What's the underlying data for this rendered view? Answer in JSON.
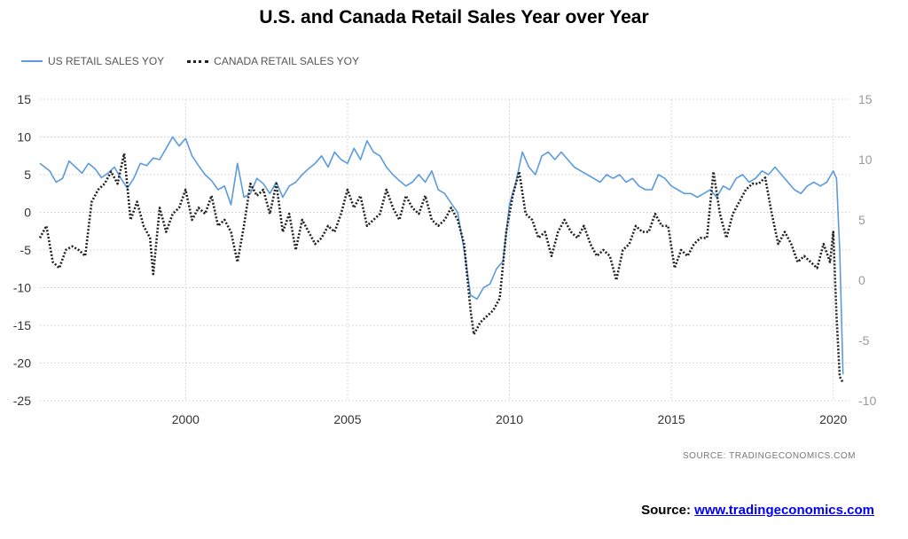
{
  "title": "U.S. and Canada Retail Sales Year over Year",
  "source_small": "SOURCE:   TRADINGECONOMICS.COM",
  "source_label": "Source:",
  "source_link": "www.tradingeconomics.com",
  "colors": {
    "us": "#5b9bde",
    "canada": "#222222",
    "grid": "#d9d9d9"
  },
  "chart_data": {
    "type": "line",
    "title": "U.S. and Canada Retail Sales Year over Year",
    "xlabel": "",
    "ylabel": "",
    "xlim": [
      1995.5,
      2020.5
    ],
    "ylim_left": [
      -25,
      15
    ],
    "ylim_right": [
      -10,
      15
    ],
    "x_ticks": [
      "2000",
      "2005",
      "2010",
      "2015",
      "2020"
    ],
    "y_ticks_left": [
      "15",
      "10",
      "5",
      "0",
      "-5",
      "-10",
      "-15",
      "-20",
      "-25"
    ],
    "y_ticks_right": [
      "15",
      "10",
      "5",
      "0",
      "-5",
      "-10"
    ],
    "grid": true,
    "legend_position": "top-left",
    "series": [
      {
        "name": "US RETAIL SALES YOY",
        "axis": "left",
        "style": "solid",
        "x": [
          1995.5,
          1995.8,
          1996.0,
          1996.2,
          1996.4,
          1996.6,
          1996.8,
          1997.0,
          1997.2,
          1997.4,
          1997.6,
          1997.8,
          1998.0,
          1998.2,
          1998.4,
          1998.6,
          1998.8,
          1999.0,
          1999.2,
          1999.4,
          1999.6,
          1999.8,
          2000.0,
          2000.2,
          2000.4,
          2000.6,
          2000.8,
          2001.0,
          2001.2,
          2001.4,
          2001.6,
          2001.8,
          2002.0,
          2002.2,
          2002.4,
          2002.6,
          2002.8,
          2003.0,
          2003.2,
          2003.4,
          2003.6,
          2003.8,
          2004.0,
          2004.2,
          2004.4,
          2004.6,
          2004.8,
          2005.0,
          2005.2,
          2005.4,
          2005.6,
          2005.8,
          2006.0,
          2006.2,
          2006.4,
          2006.6,
          2006.8,
          2007.0,
          2007.2,
          2007.4,
          2007.6,
          2007.8,
          2008.0,
          2008.2,
          2008.4,
          2008.6,
          2008.8,
          2009.0,
          2009.2,
          2009.4,
          2009.6,
          2009.8,
          2010.0,
          2010.2,
          2010.4,
          2010.6,
          2010.8,
          2011.0,
          2011.2,
          2011.4,
          2011.6,
          2011.8,
          2012.0,
          2012.2,
          2012.4,
          2012.6,
          2012.8,
          2013.0,
          2013.2,
          2013.4,
          2013.6,
          2013.8,
          2014.0,
          2014.2,
          2014.4,
          2014.6,
          2014.8,
          2015.0,
          2015.2,
          2015.4,
          2015.6,
          2015.8,
          2016.0,
          2016.2,
          2016.4,
          2016.6,
          2016.8,
          2017.0,
          2017.2,
          2017.4,
          2017.6,
          2017.8,
          2018.0,
          2018.2,
          2018.4,
          2018.6,
          2018.8,
          2019.0,
          2019.2,
          2019.4,
          2019.6,
          2019.8,
          2020.0,
          2020.1,
          2020.2,
          2020.3
        ],
        "values": [
          6.5,
          5.5,
          4.0,
          4.5,
          6.8,
          6.0,
          5.2,
          6.5,
          5.8,
          4.6,
          5.2,
          6.0,
          4.5,
          3.2,
          4.5,
          6.5,
          6.2,
          7.2,
          7.0,
          8.5,
          10.0,
          8.8,
          9.8,
          7.5,
          6.2,
          5.0,
          4.2,
          3.0,
          3.5,
          1.0,
          6.5,
          2.0,
          2.5,
          4.5,
          3.8,
          2.5,
          4.0,
          2.0,
          3.5,
          4.0,
          5.0,
          5.8,
          6.5,
          7.5,
          6.0,
          8.0,
          7.0,
          6.5,
          8.5,
          7.0,
          9.5,
          8.0,
          7.5,
          6.0,
          5.0,
          4.2,
          3.5,
          4.0,
          5.0,
          4.0,
          5.5,
          3.0,
          2.5,
          1.2,
          0.0,
          -5.0,
          -11.0,
          -11.5,
          -10.0,
          -9.5,
          -7.5,
          -6.5,
          1.0,
          4.0,
          8.0,
          6.0,
          5.0,
          7.5,
          8.0,
          7.0,
          8.0,
          7.0,
          6.0,
          5.5,
          5.0,
          4.5,
          4.0,
          5.0,
          4.5,
          5.0,
          4.0,
          4.5,
          3.5,
          3.0,
          3.0,
          5.0,
          4.5,
          3.5,
          3.0,
          2.5,
          2.5,
          2.0,
          2.5,
          3.0,
          2.0,
          3.5,
          3.0,
          4.5,
          5.0,
          4.0,
          4.5,
          5.5,
          5.0,
          6.0,
          5.0,
          4.0,
          3.0,
          2.5,
          3.5,
          4.0,
          3.5,
          4.0,
          5.5,
          4.5,
          -5.0,
          -21.5
        ]
      },
      {
        "name": "CANADA RETAIL SALES YOY",
        "axis": "right",
        "style": "dotted",
        "x": [
          1995.5,
          1995.7,
          1995.9,
          1996.1,
          1996.3,
          1996.5,
          1996.7,
          1996.9,
          1997.1,
          1997.3,
          1997.5,
          1997.7,
          1997.9,
          1998.1,
          1998.3,
          1998.5,
          1998.7,
          1998.9,
          1999.0,
          1999.2,
          1999.4,
          1999.6,
          1999.8,
          2000.0,
          2000.2,
          2000.4,
          2000.6,
          2000.8,
          2001.0,
          2001.2,
          2001.4,
          2001.6,
          2001.8,
          2002.0,
          2002.2,
          2002.4,
          2002.6,
          2002.8,
          2003.0,
          2003.2,
          2003.4,
          2003.6,
          2003.8,
          2004.0,
          2004.2,
          2004.4,
          2004.6,
          2004.8,
          2005.0,
          2005.2,
          2005.4,
          2005.6,
          2005.8,
          2006.0,
          2006.2,
          2006.4,
          2006.6,
          2006.8,
          2007.0,
          2007.2,
          2007.4,
          2007.6,
          2007.8,
          2008.0,
          2008.2,
          2008.4,
          2008.6,
          2008.8,
          2008.9,
          2009.1,
          2009.3,
          2009.5,
          2009.7,
          2009.9,
          2010.1,
          2010.3,
          2010.5,
          2010.7,
          2010.9,
          2011.1,
          2011.3,
          2011.5,
          2011.7,
          2011.9,
          2012.1,
          2012.3,
          2012.5,
          2012.7,
          2012.9,
          2013.1,
          2013.3,
          2013.5,
          2013.7,
          2013.9,
          2014.1,
          2014.3,
          2014.5,
          2014.7,
          2014.9,
          2015.1,
          2015.3,
          2015.5,
          2015.7,
          2015.9,
          2016.1,
          2016.3,
          2016.5,
          2016.7,
          2016.9,
          2017.1,
          2017.3,
          2017.5,
          2017.7,
          2017.9,
          2018.1,
          2018.3,
          2018.5,
          2018.7,
          2018.9,
          2019.1,
          2019.3,
          2019.5,
          2019.7,
          2019.9,
          2020.0,
          2020.1,
          2020.2,
          2020.3
        ],
        "values": [
          3.5,
          4.5,
          1.5,
          1.0,
          2.5,
          2.8,
          2.5,
          2.0,
          6.5,
          7.5,
          8.0,
          9.0,
          8.0,
          10.5,
          5.0,
          6.5,
          4.5,
          3.5,
          0.5,
          6.0,
          4.0,
          5.5,
          6.0,
          7.5,
          5.0,
          6.0,
          5.5,
          7.0,
          4.5,
          5.0,
          4.0,
          1.5,
          4.5,
          8.0,
          7.0,
          7.5,
          5.5,
          8.0,
          4.0,
          5.5,
          2.5,
          5.0,
          4.0,
          3.0,
          3.5,
          4.5,
          4.0,
          5.5,
          7.5,
          6.0,
          7.0,
          4.5,
          5.0,
          5.5,
          7.5,
          6.0,
          5.0,
          7.0,
          6.0,
          5.5,
          7.0,
          5.0,
          4.5,
          5.0,
          6.0,
          5.0,
          3.0,
          -2.5,
          -4.5,
          -3.5,
          -3.0,
          -2.5,
          -1.5,
          4.0,
          7.0,
          9.0,
          5.5,
          5.0,
          3.5,
          4.0,
          2.0,
          4.0,
          5.0,
          4.0,
          3.5,
          4.5,
          3.0,
          2.0,
          2.5,
          2.0,
          0.0,
          2.5,
          3.0,
          4.5,
          4.0,
          4.0,
          5.5,
          4.5,
          4.5,
          1.0,
          2.5,
          2.0,
          3.0,
          3.5,
          3.5,
          9.0,
          5.5,
          3.5,
          5.5,
          6.5,
          7.5,
          8.0,
          8.0,
          8.5,
          5.5,
          3.0,
          4.0,
          3.0,
          1.5,
          2.0,
          1.5,
          1.0,
          3.0,
          1.5,
          4.0,
          -3.0,
          -8.0,
          -8.5
        ]
      }
    ]
  }
}
